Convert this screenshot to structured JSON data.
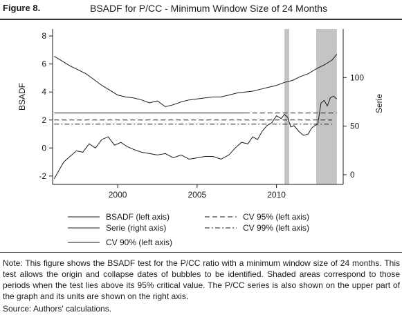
{
  "figure": {
    "label": "Figure 8.",
    "title": "BSADF for P/CC - Minimum Window Size of 24 Months"
  },
  "note": "Note: This figure shows the BSADF test for the P/CC ratio with a minimum window size of 24 months. This test allows the origin and collapse dates of bubbles to be identified. Shaded areas correspond to those periods when the test lies above its 95% critical value. The P/CC series is also shown on the upper part of the graph and its units are shown on the right axis.",
  "source": "Source: Authors' calculations.",
  "chart_data": {
    "type": "line",
    "title": "BSADF for P/CC - Minimum Window Size of 24 Months",
    "xlabel": "",
    "ylabel_left": "BSADF",
    "ylabel_right": "Serie",
    "xlim": [
      1995.9,
      2014.2
    ],
    "ylim_left": [
      -2.6,
      8.5
    ],
    "ylim_right": [
      -10,
      150
    ],
    "x_ticks": [
      2000,
      2005,
      2010
    ],
    "x_tick_labels": [
      "2000",
      "2005",
      "2010"
    ],
    "y_left_ticks": [
      -2,
      0,
      2,
      4,
      6,
      8
    ],
    "y_left_tick_labels": [
      "-2",
      "0",
      "2",
      "4",
      "6",
      "8"
    ],
    "y_right_ticks": [
      0,
      50,
      100
    ],
    "y_right_tick_labels": [
      "0",
      "50",
      "100"
    ],
    "grid": false,
    "legend_position": "bottom",
    "shaded_periods": [
      [
        2010.5,
        2010.8
      ],
      [
        2012.5,
        2013.8
      ]
    ],
    "series": [
      {
        "name": "BSADF (left axis)",
        "axis": "left",
        "style": "solid",
        "x": [
          1996.0,
          1996.3,
          1996.6,
          1997.0,
          1997.4,
          1997.8,
          1998.2,
          1998.6,
          1999.0,
          1999.4,
          1999.8,
          2000.2,
          2000.6,
          2001.0,
          2001.5,
          2002.0,
          2002.5,
          2003.0,
          2003.5,
          2004.0,
          2004.5,
          2005.0,
          2005.5,
          2006.0,
          2006.5,
          2007.0,
          2007.4,
          2007.8,
          2008.2,
          2008.5,
          2008.8,
          2009.1,
          2009.4,
          2009.7,
          2010.0,
          2010.3,
          2010.5,
          2010.7,
          2010.9,
          2011.1,
          2011.4,
          2011.7,
          2012.0,
          2012.2,
          2012.4,
          2012.6,
          2012.8,
          2013.0,
          2013.2,
          2013.4,
          2013.6,
          2013.8
        ],
        "y": [
          -2.2,
          -1.6,
          -1.0,
          -0.6,
          -0.2,
          -0.3,
          0.3,
          0.0,
          0.6,
          0.8,
          0.2,
          0.4,
          0.1,
          -0.1,
          -0.3,
          -0.4,
          -0.5,
          -0.4,
          -0.7,
          -0.5,
          -0.8,
          -0.7,
          -0.6,
          -0.6,
          -0.8,
          -0.5,
          0.0,
          0.4,
          0.3,
          0.8,
          0.6,
          1.2,
          1.6,
          1.8,
          2.3,
          2.1,
          2.4,
          2.2,
          1.5,
          1.6,
          1.2,
          0.9,
          1.0,
          1.4,
          1.6,
          1.7,
          3.2,
          3.4,
          3.0,
          3.6,
          3.7,
          3.5
        ]
      },
      {
        "name": "Serie (right axis)",
        "axis": "right",
        "style": "solid",
        "x": [
          1996.0,
          1996.5,
          1997.0,
          1997.5,
          1998.0,
          1998.5,
          1999.0,
          1999.5,
          2000.0,
          2000.5,
          2001.0,
          2001.5,
          2002.0,
          2002.5,
          2003.0,
          2003.5,
          2004.0,
          2004.5,
          2005.0,
          2005.5,
          2006.0,
          2006.5,
          2007.0,
          2007.5,
          2008.0,
          2008.5,
          2009.0,
          2009.5,
          2010.0,
          2010.5,
          2011.0,
          2011.5,
          2012.0,
          2012.5,
          2013.0,
          2013.5,
          2013.8
        ],
        "y": [
          122,
          117,
          112,
          108,
          104,
          98,
          92,
          87,
          82,
          80,
          79,
          77,
          74,
          76,
          70,
          72,
          75,
          77,
          78,
          79,
          80,
          80,
          82,
          84,
          85,
          86,
          88,
          90,
          92,
          95,
          97,
          101,
          104,
          109,
          113,
          118,
          124
        ]
      },
      {
        "name": "CV 90% (left axis)",
        "axis": "left",
        "style": "solid",
        "x": [
          1996.0,
          2008.0
        ],
        "y": [
          2.5,
          2.5
        ]
      },
      {
        "name": "CV 95% (left axis)",
        "axis": "left",
        "style": "dashed",
        "x": [
          2008.0,
          2013.8
        ],
        "y": [
          2.5,
          2.5
        ]
      },
      {
        "name": "CV 95% (left axis)",
        "axis": "left",
        "style": "dashed",
        "x": [
          1996.0,
          2013.5
        ],
        "y": [
          2.0,
          2.0
        ]
      },
      {
        "name": "CV 99% (left axis)",
        "axis": "left",
        "style": "dashdot",
        "x": [
          1996.0,
          2013.5
        ],
        "y": [
          1.7,
          1.7
        ]
      }
    ],
    "legend": [
      {
        "label": "BSADF (left axis)",
        "style": "solid"
      },
      {
        "label": "Serie (right axis)",
        "style": "solid"
      },
      {
        "label": "CV 90% (left axis)",
        "style": "solid"
      },
      {
        "label": "CV 95% (left axis)",
        "style": "dashed"
      },
      {
        "label": "CV 99% (left axis)",
        "style": "dashdot"
      }
    ]
  }
}
